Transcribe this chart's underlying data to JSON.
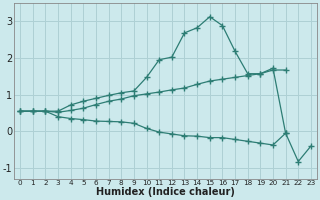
{
  "xlabel": "Humidex (Indice chaleur)",
  "background_color": "#cce9ec",
  "grid_color": "#aed0d4",
  "line_color": "#2d7d74",
  "x_values": [
    0,
    1,
    2,
    3,
    4,
    5,
    6,
    7,
    8,
    9,
    10,
    11,
    12,
    13,
    14,
    15,
    16,
    17,
    18,
    19,
    20,
    21,
    22,
    23
  ],
  "line1": [
    0.55,
    0.55,
    0.55,
    0.55,
    0.72,
    0.82,
    0.9,
    0.98,
    1.05,
    1.1,
    1.47,
    1.95,
    2.02,
    2.68,
    2.82,
    3.12,
    2.88,
    2.18,
    1.57,
    1.57,
    1.72,
    -0.05,
    null,
    null
  ],
  "line2": [
    0.55,
    0.55,
    0.55,
    0.52,
    0.57,
    0.63,
    0.73,
    0.82,
    0.88,
    0.97,
    1.02,
    1.07,
    1.13,
    1.18,
    1.28,
    1.37,
    1.42,
    1.47,
    1.52,
    1.57,
    1.67,
    1.67,
    null,
    null
  ],
  "line3": [
    0.55,
    0.55,
    0.55,
    0.4,
    0.35,
    0.32,
    0.28,
    0.27,
    0.26,
    0.22,
    0.08,
    -0.02,
    -0.07,
    -0.12,
    -0.13,
    -0.17,
    -0.17,
    -0.22,
    -0.27,
    -0.32,
    -0.37,
    -0.05,
    -0.82,
    -0.4
  ],
  "ylim": [
    -1.3,
    3.5
  ],
  "xlim": [
    -0.5,
    23.5
  ],
  "yticks": [
    -1,
    0,
    1,
    2,
    3
  ],
  "xticks": [
    0,
    1,
    2,
    3,
    4,
    5,
    6,
    7,
    8,
    9,
    10,
    11,
    12,
    13,
    14,
    15,
    16,
    17,
    18,
    19,
    20,
    21,
    22,
    23
  ]
}
